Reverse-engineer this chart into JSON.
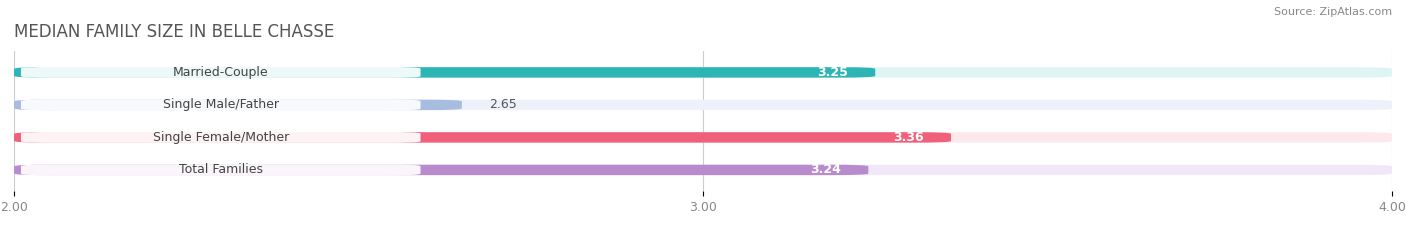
{
  "title": "MEDIAN FAMILY SIZE IN BELLE CHASSE",
  "source": "Source: ZipAtlas.com",
  "categories": [
    "Married-Couple",
    "Single Male/Father",
    "Single Female/Mother",
    "Total Families"
  ],
  "values": [
    3.25,
    2.65,
    3.36,
    3.24
  ],
  "bar_colors": [
    "#2db5b5",
    "#a8bce0",
    "#f0607a",
    "#b88ccc"
  ],
  "bar_bg_colors": [
    "#dff5f5",
    "#edf1f9",
    "#fde8ec",
    "#f0e8f8"
  ],
  "label_colors": [
    "white",
    "white",
    "white",
    "white"
  ],
  "xlim_min": 2.0,
  "xlim_max": 4.0,
  "xticks": [
    2.0,
    3.0,
    4.0
  ],
  "xtick_labels": [
    "2.00",
    "3.00",
    "4.00"
  ],
  "bar_height": 0.32,
  "figsize": [
    14.06,
    2.33
  ],
  "dpi": 100,
  "title_fontsize": 12,
  "label_fontsize": 9,
  "value_fontsize": 9,
  "tick_fontsize": 9
}
